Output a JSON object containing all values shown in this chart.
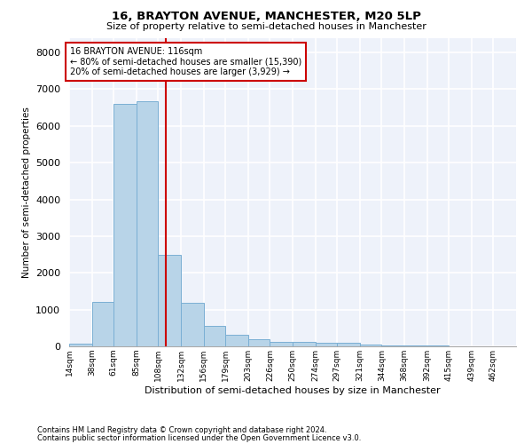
{
  "title": "16, BRAYTON AVENUE, MANCHESTER, M20 5LP",
  "subtitle": "Size of property relative to semi-detached houses in Manchester",
  "xlabel": "Distribution of semi-detached houses by size in Manchester",
  "ylabel": "Number of semi-detached properties",
  "footnote1": "Contains HM Land Registry data © Crown copyright and database right 2024.",
  "footnote2": "Contains public sector information licensed under the Open Government Licence v3.0.",
  "property_label": "16 BRAYTON AVENUE: 116sqm",
  "smaller_text": "← 80% of semi-detached houses are smaller (15,390)",
  "larger_text": "20% of semi-detached houses are larger (3,929) →",
  "property_value": 116,
  "bar_color": "#b8d4e8",
  "bar_edge_color": "#7bafd4",
  "vline_color": "#cc0000",
  "annotation_box_color": "#cc0000",
  "background_color": "#eef2fa",
  "grid_color": "#ffffff",
  "bins": [
    14,
    38,
    61,
    85,
    108,
    132,
    156,
    179,
    203,
    226,
    250,
    274,
    297,
    321,
    344,
    368,
    392,
    415,
    439,
    462,
    486
  ],
  "counts": [
    80,
    1220,
    6600,
    6680,
    2480,
    1180,
    560,
    310,
    200,
    130,
    120,
    90,
    95,
    40,
    30,
    20,
    15,
    10,
    8,
    5
  ],
  "ylim": [
    0,
    8400
  ],
  "yticks": [
    0,
    1000,
    2000,
    3000,
    4000,
    5000,
    6000,
    7000,
    8000
  ]
}
